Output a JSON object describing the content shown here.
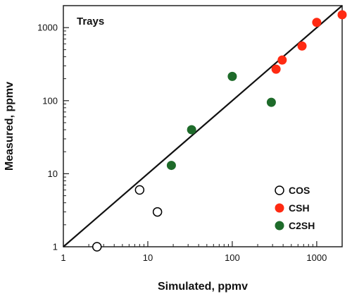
{
  "chart_data": {
    "type": "scatter",
    "title": "Trays",
    "xlabel": "Simulated, ppmv",
    "ylabel": "Measured, ppmv",
    "x_scale": "log",
    "y_scale": "log",
    "xlim": [
      1,
      2000
    ],
    "ylim": [
      1,
      2000
    ],
    "x_ticks": [
      1,
      10,
      100,
      1000
    ],
    "y_ticks": [
      1,
      10,
      100,
      1000
    ],
    "x_tick_labels": [
      "1",
      "10",
      "100",
      "1000"
    ],
    "y_tick_labels": [
      "1",
      "10",
      "100",
      "1000"
    ],
    "grid": false,
    "legend_position": "bottom-right",
    "reference_line": "y = x",
    "series": [
      {
        "name": "COS",
        "marker": "open-circle",
        "color": "#000000",
        "fill": "#ffffff",
        "points": [
          {
            "x": 2.5,
            "y": 1.0
          },
          {
            "x": 8.0,
            "y": 6.0
          },
          {
            "x": 13.0,
            "y": 3.0
          }
        ]
      },
      {
        "name": "CSH",
        "marker": "filled-circle",
        "color": "#ff2a12",
        "fill": "#ff2a12",
        "points": [
          {
            "x": 330,
            "y": 270
          },
          {
            "x": 390,
            "y": 360
          },
          {
            "x": 670,
            "y": 560
          },
          {
            "x": 1000,
            "y": 1180
          },
          {
            "x": 2000,
            "y": 1500
          }
        ]
      },
      {
        "name": "C2SH",
        "marker": "filled-circle",
        "color": "#1e6b2a",
        "fill": "#1e6b2a",
        "points": [
          {
            "x": 19,
            "y": 13
          },
          {
            "x": 33,
            "y": 40
          },
          {
            "x": 100,
            "y": 215
          },
          {
            "x": 290,
            "y": 95
          }
        ]
      }
    ]
  }
}
